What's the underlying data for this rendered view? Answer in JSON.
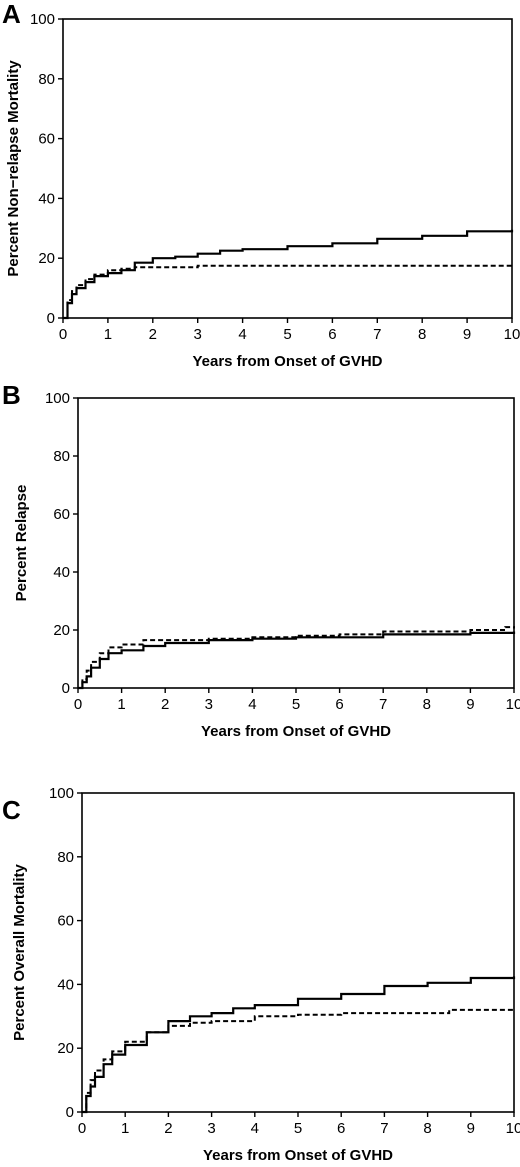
{
  "chart_data": [
    {
      "type": "line",
      "panel": "A",
      "xlabel": "Years from Onset of GVHD",
      "ylabel": "Percent Non−relapse Mortality",
      "xlim": [
        0,
        10
      ],
      "ylim": [
        0,
        100
      ],
      "xticks": [
        "0",
        "1",
        "2",
        "3",
        "4",
        "5",
        "6",
        "7",
        "8",
        "9",
        "10"
      ],
      "yticks": [
        "0",
        "20",
        "40",
        "60",
        "80",
        "100"
      ],
      "grid": false,
      "series": [
        {
          "style": "solid",
          "x": [
            0,
            0.1,
            0.2,
            0.3,
            0.5,
            0.7,
            1.0,
            1.3,
            1.6,
            2.0,
            2.5,
            3.0,
            3.5,
            4.0,
            5.0,
            6.0,
            7.0,
            8.0,
            9.0,
            10.0
          ],
          "y": [
            0,
            5,
            8,
            10,
            12,
            14,
            15,
            16,
            18.5,
            20,
            20.5,
            21.5,
            22.5,
            23,
            24,
            25,
            26.5,
            27.5,
            29,
            29.5
          ]
        },
        {
          "style": "dashed",
          "x": [
            0,
            0.1,
            0.2,
            0.3,
            0.5,
            0.7,
            1.0,
            1.3,
            1.6,
            2.0,
            3.0,
            4.0,
            5.0,
            6.0,
            7.0,
            8.0,
            9.0,
            10.0
          ],
          "y": [
            0,
            6,
            9,
            11,
            13,
            14.5,
            16,
            16.5,
            17,
            17,
            17.5,
            17.5,
            17.5,
            17.5,
            17.5,
            17.5,
            17.5,
            17.5
          ]
        }
      ]
    },
    {
      "type": "line",
      "panel": "B",
      "xlabel": "Years from Onset of GVHD",
      "ylabel": "Percent Relapse",
      "xlim": [
        0,
        10
      ],
      "ylim": [
        0,
        100
      ],
      "xticks": [
        "0",
        "1",
        "2",
        "3",
        "4",
        "5",
        "6",
        "7",
        "8",
        "9",
        "10"
      ],
      "yticks": [
        "0",
        "20",
        "40",
        "60",
        "80",
        "100"
      ],
      "grid": false,
      "series": [
        {
          "style": "solid",
          "x": [
            0,
            0.1,
            0.2,
            0.3,
            0.5,
            0.7,
            1.0,
            1.5,
            2.0,
            3.0,
            4.0,
            5.0,
            6.0,
            7.0,
            8.0,
            9.0,
            10.0
          ],
          "y": [
            0,
            2,
            4,
            7,
            10,
            12,
            13,
            14.5,
            15.5,
            16.5,
            17,
            17.5,
            17.5,
            18.5,
            18.5,
            19,
            19.5
          ]
        },
        {
          "style": "dashed",
          "x": [
            0,
            0.1,
            0.2,
            0.3,
            0.5,
            0.7,
            1.0,
            1.5,
            2.0,
            3.0,
            4.0,
            5.0,
            6.0,
            7.0,
            8.0,
            9.0,
            9.8,
            10.0
          ],
          "y": [
            0,
            3,
            6,
            9,
            12,
            14,
            15,
            16.5,
            16.5,
            17,
            17.5,
            18,
            18.5,
            19.5,
            19.5,
            20,
            21,
            20.5
          ]
        }
      ]
    },
    {
      "type": "line",
      "panel": "C",
      "xlabel": "Years from Onset of GVHD",
      "ylabel": "Percent Overall Mortality",
      "xlim": [
        0,
        10
      ],
      "ylim": [
        0,
        100
      ],
      "xticks": [
        "0",
        "1",
        "2",
        "3",
        "4",
        "5",
        "6",
        "7",
        "8",
        "9",
        "10"
      ],
      "yticks": [
        "0",
        "20",
        "40",
        "60",
        "80",
        "100"
      ],
      "grid": false,
      "series": [
        {
          "style": "solid",
          "x": [
            0,
            0.1,
            0.2,
            0.3,
            0.5,
            0.7,
            1.0,
            1.5,
            2.0,
            2.5,
            3.0,
            3.5,
            4.0,
            5.0,
            6.0,
            7.0,
            8.0,
            9.0,
            10.0
          ],
          "y": [
            0,
            5,
            8,
            11,
            15,
            18,
            21,
            25,
            28.5,
            30,
            31,
            32.5,
            33.5,
            35.5,
            37,
            39.5,
            40.5,
            42,
            42.5
          ]
        },
        {
          "style": "dashed",
          "x": [
            0,
            0.1,
            0.2,
            0.3,
            0.5,
            0.7,
            1.0,
            1.5,
            2.0,
            2.5,
            3.0,
            4.0,
            5.0,
            6.0,
            7.0,
            8.0,
            8.5,
            9.0,
            10.0
          ],
          "y": [
            0,
            6,
            10,
            13,
            16.5,
            19,
            22,
            25,
            27,
            28,
            28.5,
            30,
            30.5,
            31,
            31,
            31,
            32,
            32,
            32
          ]
        }
      ]
    }
  ]
}
